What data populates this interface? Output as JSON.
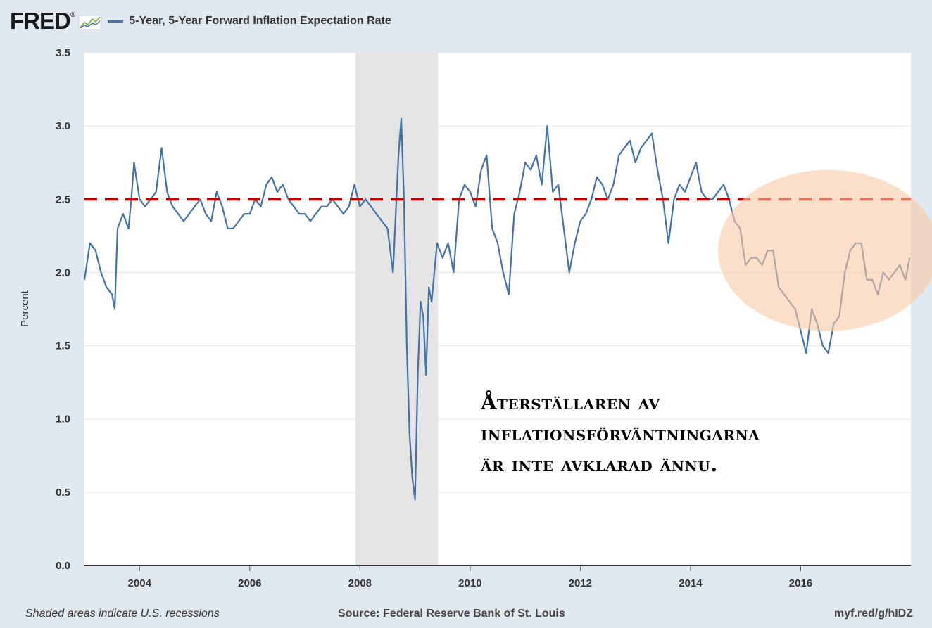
{
  "header": {
    "logo_text": "FRED",
    "logo_mark": "®",
    "logo_icon": "mini-line-chart-icon"
  },
  "footer": {
    "recession_note": "Shaded areas indicate U.S. recessions",
    "source": "Source: Federal Reserve Bank of St. Louis",
    "short_url": "myf.red/g/hIDZ"
  },
  "annotation": {
    "text": "Återställaren av\ninflationsförväntningarna\när inte avklarad ännu."
  },
  "colors": {
    "series": "#4572a7",
    "reference_line": "#c00000",
    "recession_shade": "#e5e5e5",
    "highlight_ellipse": "#f8c9a4",
    "plot_background": "#ffffff",
    "page_background": "#e1e9f0"
  },
  "chart_data": {
    "type": "line",
    "title": "5-Year, 5-Year Forward Inflation Expectation Rate",
    "ylabel": "Percent",
    "xlabel": "",
    "xlim": [
      2003.0,
      2018.0
    ],
    "ylim": [
      0.0,
      3.5
    ],
    "y_ticks": [
      0.0,
      0.5,
      1.0,
      1.5,
      2.0,
      2.5,
      3.0,
      3.5
    ],
    "y_tick_labels": [
      "0.0",
      "0.5",
      "1.0",
      "1.5",
      "2.0",
      "2.5",
      "3.0",
      "3.5"
    ],
    "x_ticks": [
      2004,
      2006,
      2008,
      2010,
      2012,
      2014,
      2016
    ],
    "x_tick_labels": [
      "2004",
      "2006",
      "2008",
      "2010",
      "2012",
      "2014",
      "2016"
    ],
    "grid": true,
    "reference_line": {
      "y": 2.5,
      "style": "dashed"
    },
    "recession": {
      "start": 2007.92,
      "end": 2009.42
    },
    "highlight_ellipse": {
      "x_center": 2016.5,
      "y_center": 2.15,
      "x_radius": 2.0,
      "y_radius": 0.55
    },
    "series": [
      {
        "name": "5-Year, 5-Year Forward Inflation Expectation Rate",
        "x": [
          2003.0,
          2003.1,
          2003.2,
          2003.3,
          2003.4,
          2003.5,
          2003.55,
          2003.6,
          2003.7,
          2003.8,
          2003.85,
          2003.9,
          2004.0,
          2004.1,
          2004.2,
          2004.3,
          2004.4,
          2004.45,
          2004.5,
          2004.6,
          2004.7,
          2004.8,
          2004.9,
          2005.0,
          2005.1,
          2005.2,
          2005.3,
          2005.4,
          2005.5,
          2005.6,
          2005.7,
          2005.8,
          2005.9,
          2006.0,
          2006.1,
          2006.2,
          2006.3,
          2006.4,
          2006.5,
          2006.6,
          2006.7,
          2006.8,
          2006.9,
          2007.0,
          2007.1,
          2007.2,
          2007.3,
          2007.4,
          2007.5,
          2007.6,
          2007.7,
          2007.8,
          2007.9,
          2008.0,
          2008.1,
          2008.2,
          2008.3,
          2008.4,
          2008.5,
          2008.6,
          2008.7,
          2008.75,
          2008.8,
          2008.85,
          2008.9,
          2008.95,
          2009.0,
          2009.05,
          2009.1,
          2009.15,
          2009.2,
          2009.25,
          2009.3,
          2009.35,
          2009.4,
          2009.5,
          2009.6,
          2009.7,
          2009.8,
          2009.9,
          2010.0,
          2010.1,
          2010.2,
          2010.3,
          2010.4,
          2010.5,
          2010.6,
          2010.7,
          2010.8,
          2010.9,
          2011.0,
          2011.1,
          2011.2,
          2011.3,
          2011.4,
          2011.5,
          2011.6,
          2011.7,
          2011.8,
          2011.9,
          2012.0,
          2012.1,
          2012.2,
          2012.3,
          2012.4,
          2012.5,
          2012.6,
          2012.7,
          2012.8,
          2012.9,
          2013.0,
          2013.1,
          2013.2,
          2013.3,
          2013.4,
          2013.5,
          2013.6,
          2013.7,
          2013.8,
          2013.9,
          2014.0,
          2014.1,
          2014.2,
          2014.3,
          2014.4,
          2014.5,
          2014.6,
          2014.7,
          2014.8,
          2014.9,
          2015.0,
          2015.1,
          2015.2,
          2015.3,
          2015.4,
          2015.5,
          2015.6,
          2015.7,
          2015.8,
          2015.9,
          2016.0,
          2016.1,
          2016.2,
          2016.3,
          2016.4,
          2016.5,
          2016.6,
          2016.7,
          2016.8,
          2016.9,
          2017.0,
          2017.1,
          2017.2,
          2017.3,
          2017.4,
          2017.5,
          2017.6,
          2017.7,
          2017.8,
          2017.9,
          2017.98
        ],
        "values": [
          1.95,
          2.2,
          2.15,
          2.0,
          1.9,
          1.85,
          1.75,
          2.3,
          2.4,
          2.3,
          2.5,
          2.75,
          2.5,
          2.45,
          2.5,
          2.55,
          2.85,
          2.7,
          2.55,
          2.45,
          2.4,
          2.35,
          2.4,
          2.45,
          2.5,
          2.4,
          2.35,
          2.55,
          2.45,
          2.3,
          2.3,
          2.35,
          2.4,
          2.4,
          2.5,
          2.45,
          2.6,
          2.65,
          2.55,
          2.6,
          2.5,
          2.45,
          2.4,
          2.4,
          2.35,
          2.4,
          2.45,
          2.45,
          2.5,
          2.45,
          2.4,
          2.45,
          2.6,
          2.45,
          2.5,
          2.45,
          2.4,
          2.35,
          2.3,
          2.0,
          2.8,
          3.05,
          2.5,
          1.5,
          0.9,
          0.6,
          0.45,
          1.3,
          1.8,
          1.7,
          1.3,
          1.9,
          1.8,
          2.0,
          2.2,
          2.1,
          2.2,
          2.0,
          2.5,
          2.6,
          2.55,
          2.45,
          2.7,
          2.8,
          2.3,
          2.2,
          2.0,
          1.85,
          2.4,
          2.55,
          2.75,
          2.7,
          2.8,
          2.6,
          3.0,
          2.55,
          2.6,
          2.3,
          2.0,
          2.2,
          2.35,
          2.4,
          2.5,
          2.65,
          2.6,
          2.5,
          2.6,
          2.8,
          2.85,
          2.9,
          2.75,
          2.85,
          2.9,
          2.95,
          2.7,
          2.5,
          2.2,
          2.5,
          2.6,
          2.55,
          2.65,
          2.75,
          2.55,
          2.5,
          2.5,
          2.55,
          2.6,
          2.5,
          2.35,
          2.3,
          2.05,
          2.1,
          2.1,
          2.05,
          2.15,
          2.15,
          1.9,
          1.85,
          1.8,
          1.75,
          1.6,
          1.45,
          1.75,
          1.65,
          1.5,
          1.45,
          1.65,
          1.7,
          2.0,
          2.15,
          2.2,
          2.2,
          1.95,
          1.95,
          1.85,
          2.0,
          1.95,
          2.0,
          2.05,
          1.95,
          2.1
        ]
      }
    ]
  }
}
